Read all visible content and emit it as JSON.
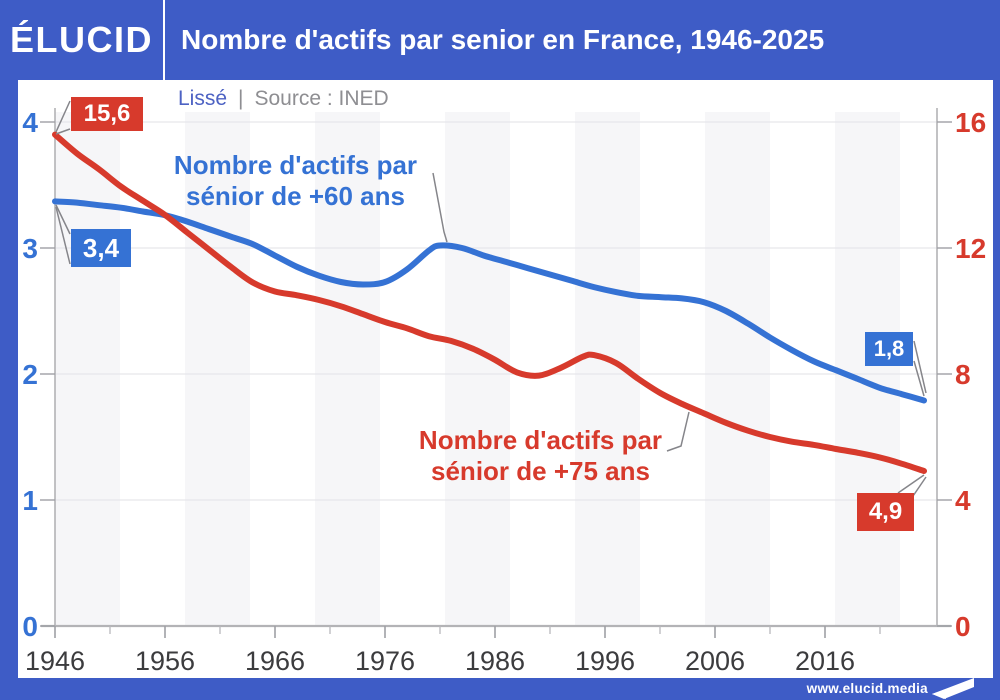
{
  "colors": {
    "frame_blue": "#3E5CC6",
    "line_blue": "#3572D4",
    "line_red": "#D73A2C",
    "subtitle_blue": "#4D62C3",
    "text_gray": "#8E8E92",
    "axis_text_dark": "#3C3C3E",
    "band_gray": "#F6F6F8",
    "gridline": "#E7E7EA",
    "axis_line": "#B3B3B6",
    "connector": "#85858A"
  },
  "header": {
    "logo": "ÉLUCID",
    "title": "Nombre d'actifs par senior en France, 1946-2025"
  },
  "subtitle": {
    "method": "Lissé",
    "divider": "|",
    "source": "Source : INED"
  },
  "footer": {
    "url": "www.elucid.media"
  },
  "chart_data": {
    "type": "line",
    "title": "Nombre d'actifs par senior en France, 1946-2025",
    "grid": true,
    "x_axis": {
      "range": [
        1946,
        2026
      ],
      "major_ticks": [
        1946,
        1956,
        1966,
        1976,
        1986,
        1996,
        2006,
        2016
      ],
      "tick_labels": [
        "1946",
        "1956",
        "1966",
        "1976",
        "1986",
        "1996",
        "2006",
        "2016"
      ],
      "minor_ticks": [
        1951,
        1961,
        1971,
        1981,
        1991,
        2001,
        2011,
        2021
      ]
    },
    "y_axis_left": {
      "color": "#3572D4",
      "range": [
        0,
        4
      ],
      "ticks": [
        4,
        3,
        2,
        1,
        0
      ],
      "tick_labels": [
        "4",
        "3",
        "2",
        "1",
        "0"
      ]
    },
    "y_axis_right": {
      "color": "#D73A2C",
      "range": [
        0,
        16
      ],
      "ticks": [
        16,
        12,
        8,
        4,
        0
      ],
      "tick_labels": [
        "16",
        "12",
        "8",
        "4",
        "0"
      ]
    },
    "series": [
      {
        "name": "Nombre d'actifs par sénior de +60 ans",
        "label_line1": "Nombre d'actifs par",
        "label_line2": "sénior de +60 ans",
        "axis": "left",
        "color": "#3572D4",
        "start_label": "3,4",
        "end_label": "1,8",
        "points": [
          [
            1946,
            3.37
          ],
          [
            1948,
            3.36
          ],
          [
            1950,
            3.34
          ],
          [
            1952,
            3.32
          ],
          [
            1954,
            3.29
          ],
          [
            1956,
            3.26
          ],
          [
            1958,
            3.21
          ],
          [
            1960,
            3.15
          ],
          [
            1962,
            3.09
          ],
          [
            1964,
            3.03
          ],
          [
            1966,
            2.94
          ],
          [
            1968,
            2.85
          ],
          [
            1970,
            2.78
          ],
          [
            1972,
            2.73
          ],
          [
            1974,
            2.71
          ],
          [
            1976,
            2.73
          ],
          [
            1978,
            2.83
          ],
          [
            1980,
            2.98
          ],
          [
            1981,
            3.02
          ],
          [
            1983,
            3.0
          ],
          [
            1985,
            2.94
          ],
          [
            1987,
            2.89
          ],
          [
            1989,
            2.84
          ],
          [
            1991,
            2.79
          ],
          [
            1993,
            2.74
          ],
          [
            1995,
            2.69
          ],
          [
            1997,
            2.65
          ],
          [
            1999,
            2.62
          ],
          [
            2001,
            2.61
          ],
          [
            2003,
            2.6
          ],
          [
            2005,
            2.57
          ],
          [
            2007,
            2.5
          ],
          [
            2009,
            2.4
          ],
          [
            2011,
            2.29
          ],
          [
            2013,
            2.19
          ],
          [
            2015,
            2.1
          ],
          [
            2017,
            2.03
          ],
          [
            2019,
            1.96
          ],
          [
            2021,
            1.89
          ],
          [
            2023,
            1.84
          ],
          [
            2025,
            1.79
          ]
        ]
      },
      {
        "name": "Nombre d'actifs par sénior de +75 ans",
        "label_line1": "Nombre d'actifs par",
        "label_line2": "sénior de +75 ans",
        "axis": "right",
        "color": "#D73A2C",
        "start_label": "15,6",
        "end_label": "4,9",
        "points": [
          [
            1946,
            15.6
          ],
          [
            1948,
            15.0
          ],
          [
            1950,
            14.5
          ],
          [
            1952,
            13.95
          ],
          [
            1954,
            13.5
          ],
          [
            1956,
            13.05
          ],
          [
            1958,
            12.5
          ],
          [
            1960,
            11.95
          ],
          [
            1962,
            11.4
          ],
          [
            1964,
            10.9
          ],
          [
            1966,
            10.62
          ],
          [
            1968,
            10.5
          ],
          [
            1970,
            10.35
          ],
          [
            1972,
            10.15
          ],
          [
            1974,
            9.9
          ],
          [
            1976,
            9.65
          ],
          [
            1978,
            9.45
          ],
          [
            1980,
            9.2
          ],
          [
            1982,
            9.05
          ],
          [
            1984,
            8.8
          ],
          [
            1986,
            8.45
          ],
          [
            1988,
            8.05
          ],
          [
            1990,
            7.95
          ],
          [
            1992,
            8.2
          ],
          [
            1994,
            8.55
          ],
          [
            1995,
            8.6
          ],
          [
            1997,
            8.35
          ],
          [
            1999,
            7.85
          ],
          [
            2001,
            7.4
          ],
          [
            2003,
            7.05
          ],
          [
            2005,
            6.75
          ],
          [
            2007,
            6.45
          ],
          [
            2009,
            6.2
          ],
          [
            2011,
            6.0
          ],
          [
            2013,
            5.85
          ],
          [
            2015,
            5.75
          ],
          [
            2017,
            5.62
          ],
          [
            2019,
            5.5
          ],
          [
            2021,
            5.35
          ],
          [
            2023,
            5.15
          ],
          [
            2025,
            4.92
          ]
        ]
      }
    ]
  }
}
